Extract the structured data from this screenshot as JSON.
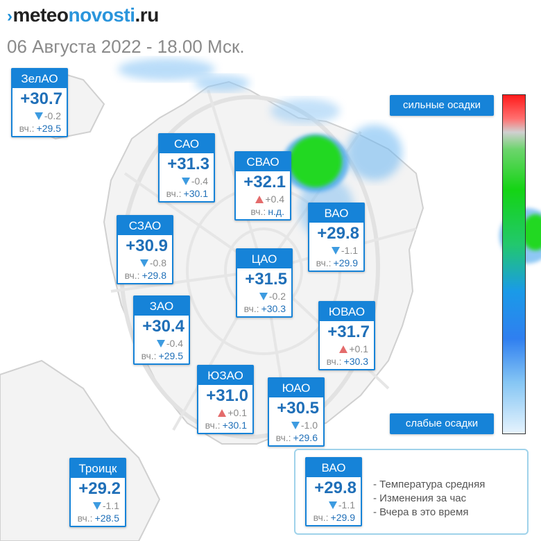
{
  "logo": {
    "part1": "meteo",
    "part2": "novosti",
    "part3": ".ru"
  },
  "date": "06 Августа 2022 - 18.00 Мск.",
  "colors": {
    "brand_blue": "#1683d8",
    "temp_blue": "#1f6fb8",
    "down_arrow": "#3d9be0",
    "up_arrow": "#e46b6b"
  },
  "districts": [
    {
      "name": "ЗелАО",
      "temp": "+30.7",
      "change": "-0.2",
      "dir": "down",
      "yesterday_label": "вч.:",
      "yesterday": "+29.5"
    },
    {
      "name": "САО",
      "temp": "+31.3",
      "change": "-0.4",
      "dir": "down",
      "yesterday_label": "вч.:",
      "yesterday": "+30.1"
    },
    {
      "name": "СВАО",
      "temp": "+32.1",
      "change": "+0.4",
      "dir": "up",
      "yesterday_label": "вч.:",
      "yesterday": "н.д."
    },
    {
      "name": "ВАО",
      "temp": "+29.8",
      "change": "-1.1",
      "dir": "down",
      "yesterday_label": "вч.:",
      "yesterday": "+29.9"
    },
    {
      "name": "СЗАО",
      "temp": "+30.9",
      "change": "-0.8",
      "dir": "down",
      "yesterday_label": "вч.:",
      "yesterday": "+29.8"
    },
    {
      "name": "ЦАО",
      "temp": "+31.5",
      "change": "-0.2",
      "dir": "down",
      "yesterday_label": "вч.:",
      "yesterday": "+30.3"
    },
    {
      "name": "ЗАО",
      "temp": "+30.4",
      "change": "-0.4",
      "dir": "down",
      "yesterday_label": "вч.:",
      "yesterday": "+29.5"
    },
    {
      "name": "ЮВАО",
      "temp": "+31.7",
      "change": "+0.1",
      "dir": "up",
      "yesterday_label": "вч.:",
      "yesterday": "+30.3"
    },
    {
      "name": "ЮЗАО",
      "temp": "+31.0",
      "change": "+0.1",
      "dir": "up",
      "yesterday_label": "вч.:",
      "yesterday": "+30.1"
    },
    {
      "name": "ЮАО",
      "temp": "+30.5",
      "change": "-1.0",
      "dir": "down",
      "yesterday_label": "вч.:",
      "yesterday": "+29.6"
    },
    {
      "name": "Троицк",
      "temp": "+29.2",
      "change": "-1.1",
      "dir": "down",
      "yesterday_label": "вч.:",
      "yesterday": "+28.5"
    }
  ],
  "precip_scale": {
    "strong_label": "сильные осадки",
    "weak_label": "слабые осадки"
  },
  "legend": {
    "example": {
      "name": "ВАО",
      "temp": "+29.8",
      "change": "-1.1",
      "dir": "down",
      "yesterday_label": "вч.:",
      "yesterday": "+29.9"
    },
    "lines": [
      "- Температура средняя",
      "- Изменения за час",
      "- Вчера в это время"
    ]
  }
}
